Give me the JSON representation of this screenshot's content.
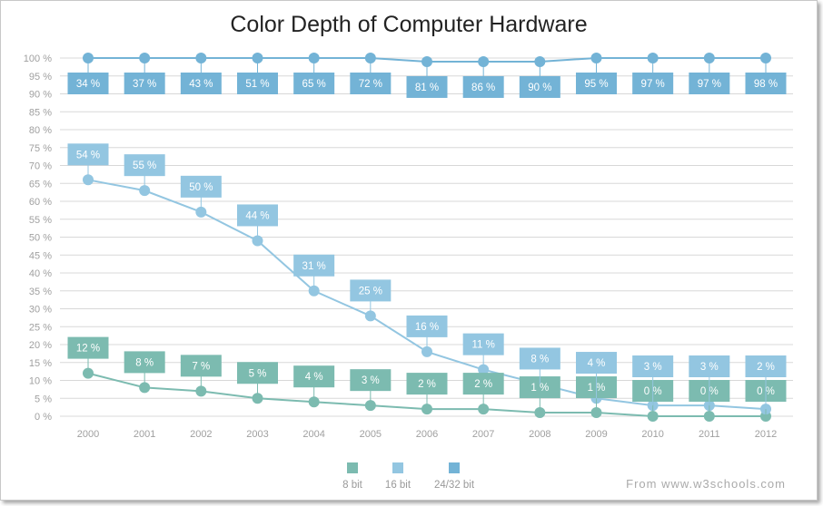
{
  "chart_data": {
    "type": "line",
    "stacking": "fullstacked",
    "title": "Color Depth of Computer Hardware",
    "categories": [
      "2000",
      "2001",
      "2002",
      "2003",
      "2004",
      "2005",
      "2006",
      "2007",
      "2008",
      "2009",
      "2010",
      "2011",
      "2012"
    ],
    "series": [
      {
        "name": "8 bit",
        "color": "#7cbbb0",
        "values": [
          12,
          8,
          7,
          5,
          4,
          3,
          2,
          2,
          1,
          1,
          0,
          0,
          0
        ]
      },
      {
        "name": "16 bit",
        "color": "#93c6e1",
        "values": [
          54,
          55,
          50,
          44,
          31,
          25,
          16,
          11,
          8,
          4,
          3,
          3,
          2
        ]
      },
      {
        "name": "24/32 bit",
        "color": "#73b3d6",
        "values": [
          34,
          37,
          43,
          51,
          65,
          72,
          81,
          86,
          90,
          95,
          97,
          97,
          98
        ]
      }
    ],
    "ylim": [
      0,
      100
    ],
    "ytick_step": 5,
    "y_format": "%",
    "grid": true,
    "legend": "bottom"
  },
  "source": "From www.w3schools.com"
}
